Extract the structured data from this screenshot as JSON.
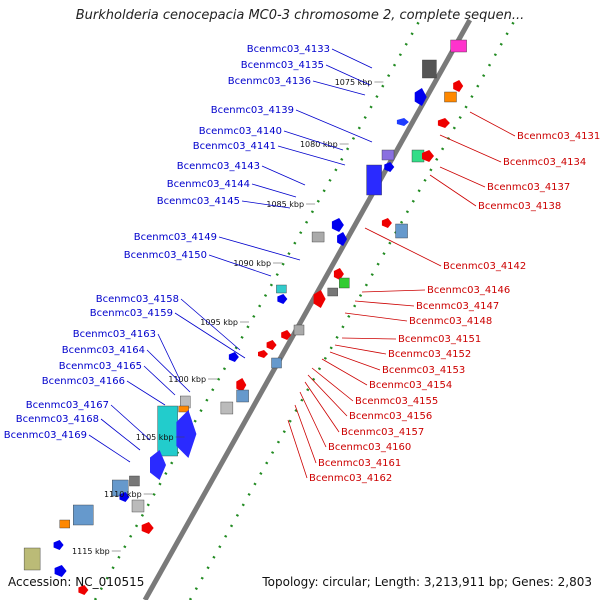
{
  "title": "Burkholderia cenocepacia MC0-3 chromosome 2, complete sequen...",
  "accession": "Accession: NC_010515",
  "summary": "Topology: circular; Length: 3,213,911 bp; Genes: 2,803",
  "colors": {
    "backbone": "#7a7a7a",
    "tick": "#228b22",
    "forward_label": "#0000cc",
    "reverse_label": "#cc0000"
  },
  "kbp_markers": [
    "1075 kbp",
    "1080 kbp",
    "1085 kbp",
    "1090 kbp",
    "1095 kbp",
    "1100 kbp",
    "1105 kbp",
    "1110 kbp",
    "1115 kbp"
  ],
  "left_genes": [
    "Bcenmc03_4133",
    "Bcenmc03_4135",
    "Bcenmc03_4136",
    "Bcenmc03_4139",
    "Bcenmc03_4140",
    "Bcenmc03_4141",
    "Bcenmc03_4143",
    "Bcenmc03_4144",
    "Bcenmc03_4145",
    "Bcenmc03_4149",
    "Bcenmc03_4150",
    "Bcenmc03_4158",
    "Bcenmc03_4159",
    "Bcenmc03_4163",
    "Bcenmc03_4164",
    "Bcenmc03_4165",
    "Bcenmc03_4166",
    "Bcenmc03_4167",
    "Bcenmc03_4168",
    "Bcenmc03_4169"
  ],
  "right_genes": [
    "Bcenmc03_4131",
    "Bcenmc03_4134",
    "Bcenmc03_4137",
    "Bcenmc03_4138",
    "Bcenmc03_4142",
    "Bcenmc03_4146",
    "Bcenmc03_4147",
    "Bcenmc03_4148",
    "Bcenmc03_4151",
    "Bcenmc03_4152",
    "Bcenmc03_4153",
    "Bcenmc03_4154",
    "Bcenmc03_4155",
    "Bcenmc03_4156",
    "Bcenmc03_4157",
    "Bcenmc03_4160",
    "Bcenmc03_4161",
    "Bcenmc03_4162"
  ]
}
